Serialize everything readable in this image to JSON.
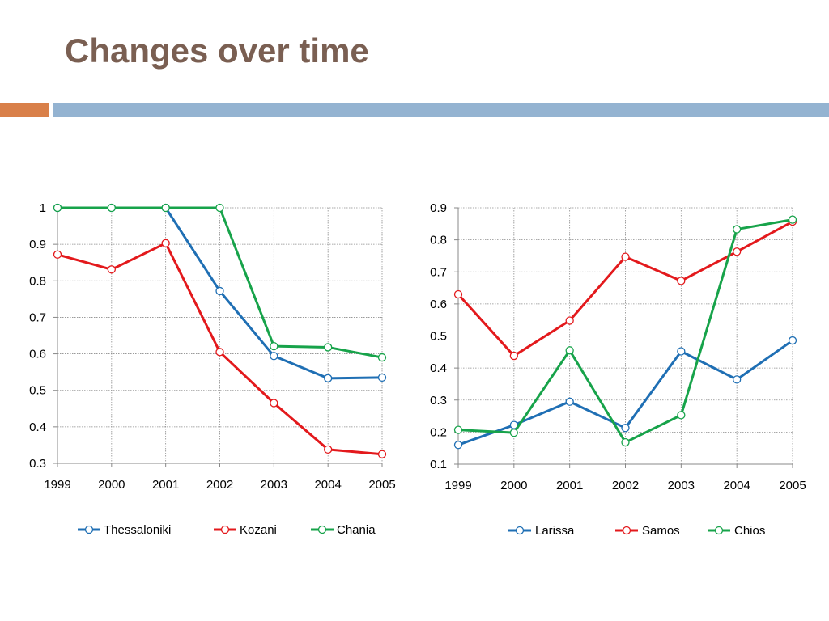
{
  "slide": {
    "title": "Changes over time",
    "colors": {
      "title": "#7a5f52",
      "accent_orange": "#d9804a",
      "accent_blue": "#94b3d1"
    }
  },
  "chart_data": [
    {
      "type": "line",
      "title": "",
      "xlabel": "",
      "ylabel": "",
      "categories": [
        "1999",
        "2000",
        "2001",
        "2002",
        "2003",
        "2004",
        "2005"
      ],
      "ylim": [
        0.3,
        1.0
      ],
      "yticks": [
        "0.3",
        "0.4",
        "0.5",
        "0.6",
        "0.7",
        "0.8",
        "0.9",
        "1"
      ],
      "grid": true,
      "legend_position": "bottom",
      "series": [
        {
          "name": "Thessaloniki",
          "color": "#1f6fb4",
          "values": [
            1.0,
            1.0,
            1.0,
            0.772,
            0.594,
            0.533,
            0.535
          ]
        },
        {
          "name": "Kozani",
          "color": "#e3191c",
          "values": [
            0.872,
            0.831,
            0.903,
            0.605,
            0.465,
            0.338,
            0.325
          ]
        },
        {
          "name": "Chania",
          "color": "#17a34a",
          "values": [
            1.0,
            1.0,
            1.0,
            1.0,
            0.621,
            0.618,
            0.59
          ]
        }
      ]
    },
    {
      "type": "line",
      "title": "",
      "xlabel": "",
      "ylabel": "",
      "categories": [
        "1999",
        "2000",
        "2001",
        "2002",
        "2003",
        "2004",
        "2005"
      ],
      "ylim": [
        0.1,
        0.9
      ],
      "yticks": [
        "0.1",
        "0.2",
        "0.3",
        "0.4",
        "0.5",
        "0.6",
        "0.7",
        "0.8",
        "0.9"
      ],
      "grid": true,
      "legend_position": "bottom",
      "series": [
        {
          "name": "Larissa",
          "color": "#1f6fb4",
          "values": [
            0.16,
            0.222,
            0.295,
            0.213,
            0.452,
            0.364,
            0.486
          ]
        },
        {
          "name": "Samos",
          "color": "#e3191c",
          "values": [
            0.63,
            0.438,
            0.548,
            0.747,
            0.672,
            0.763,
            0.857
          ]
        },
        {
          "name": "Chios",
          "color": "#17a34a",
          "values": [
            0.207,
            0.198,
            0.455,
            0.168,
            0.253,
            0.833,
            0.863
          ]
        }
      ]
    }
  ]
}
